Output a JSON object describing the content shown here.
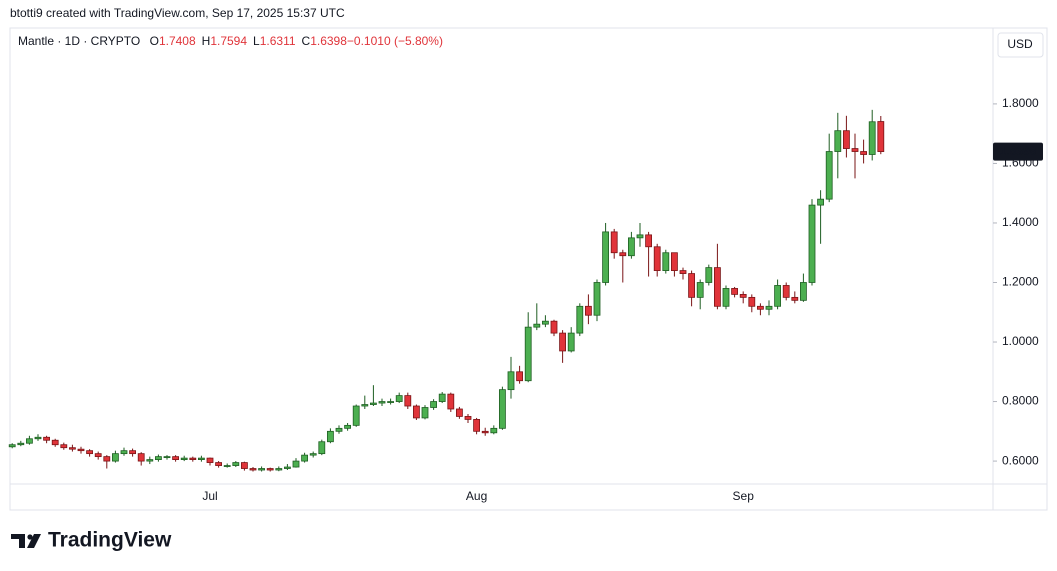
{
  "header": {
    "attribution": "btotti9 created with TradingView.com, Sep 17, 2025 15:37 UTC"
  },
  "chart_data": {
    "type": "candlestick",
    "symbol": "Mantle · 1D · CRYPTO",
    "ohlc_legend": [
      {
        "label": "O",
        "value": "1.7408"
      },
      {
        "label": "H",
        "value": "1.7594"
      },
      {
        "label": "L",
        "value": "1.6311"
      },
      {
        "label": "C",
        "value": "1.6398"
      },
      {
        "label": "",
        "value": "−0.1010 (−5.80%)"
      }
    ],
    "currency": "USD",
    "last_price": 1.6398,
    "up_color": "#4caf50",
    "down_color": "#e0343a",
    "grid": false,
    "ylim": [
      0.523,
      2.055
    ],
    "yticks": [
      {
        "value": 0.6,
        "label": "0.6000"
      },
      {
        "value": 0.8,
        "label": "0.8000"
      },
      {
        "value": 1.0,
        "label": "1.0000"
      },
      {
        "value": 1.2,
        "label": "1.2000"
      },
      {
        "value": 1.4,
        "label": "1.4000"
      },
      {
        "value": 1.6,
        "label": "1.6000"
      },
      {
        "value": 1.8,
        "label": "1.8000"
      }
    ],
    "categories": [
      null,
      null,
      null,
      null,
      null,
      null,
      null,
      null,
      null,
      null,
      null,
      null,
      null,
      null,
      null,
      null,
      null,
      null,
      null,
      null,
      null,
      null,
      null,
      "Jul",
      null,
      null,
      null,
      null,
      null,
      null,
      null,
      null,
      null,
      null,
      null,
      null,
      null,
      null,
      null,
      null,
      null,
      null,
      null,
      null,
      null,
      null,
      null,
      null,
      null,
      null,
      null,
      null,
      null,
      null,
      "Aug",
      null,
      null,
      null,
      null,
      null,
      null,
      null,
      null,
      null,
      null,
      null,
      null,
      null,
      null,
      null,
      null,
      null,
      null,
      null,
      null,
      null,
      null,
      null,
      null,
      null,
      null,
      null,
      null,
      null,
      null,
      "Sep",
      null,
      null,
      null,
      null,
      null,
      null,
      null,
      null,
      null,
      null,
      null,
      null,
      null,
      null,
      null,
      null
    ],
    "open": [
      0.648,
      0.655,
      0.66,
      0.675,
      0.68,
      0.67,
      0.655,
      0.645,
      0.64,
      0.635,
      0.625,
      0.615,
      0.6,
      0.625,
      0.635,
      0.625,
      0.6,
      0.605,
      0.615,
      0.615,
      0.605,
      0.61,
      0.605,
      0.61,
      0.595,
      0.585,
      0.585,
      0.595,
      0.575,
      0.57,
      0.575,
      0.57,
      0.575,
      0.58,
      0.6,
      0.62,
      0.625,
      0.665,
      0.7,
      0.71,
      0.72,
      0.785,
      0.79,
      0.795,
      0.8,
      0.8,
      0.82,
      0.785,
      0.745,
      0.78,
      0.8,
      0.825,
      0.775,
      0.75,
      0.74,
      0.7,
      0.695,
      0.71,
      0.84,
      0.9,
      0.87,
      1.05,
      1.06,
      1.07,
      1.03,
      0.97,
      1.03,
      1.12,
      1.09,
      1.2,
      1.37,
      1.3,
      1.29,
      1.35,
      1.36,
      1.32,
      1.24,
      1.3,
      1.24,
      1.23,
      1.15,
      1.2,
      1.25,
      1.12,
      1.18,
      1.16,
      1.15,
      1.12,
      1.11,
      1.12,
      1.19,
      1.15,
      1.14,
      1.2,
      1.46,
      1.48,
      1.64,
      1.71,
      1.65,
      1.64,
      1.63,
      1.7408
    ],
    "high": [
      0.66,
      0.668,
      0.685,
      0.69,
      0.685,
      0.675,
      0.662,
      0.655,
      0.648,
      0.64,
      0.632,
      0.62,
      0.635,
      0.645,
      0.642,
      0.63,
      0.615,
      0.622,
      0.62,
      0.62,
      0.618,
      0.615,
      0.618,
      0.612,
      0.6,
      0.592,
      0.6,
      0.598,
      0.58,
      0.582,
      0.578,
      0.582,
      0.59,
      0.61,
      0.628,
      0.632,
      0.672,
      0.71,
      0.72,
      0.728,
      0.79,
      0.82,
      0.855,
      0.81,
      0.81,
      0.83,
      0.83,
      0.79,
      0.788,
      0.808,
      0.832,
      0.83,
      0.782,
      0.758,
      0.745,
      0.712,
      0.72,
      0.85,
      0.95,
      0.92,
      1.1,
      1.13,
      1.09,
      1.075,
      1.04,
      1.05,
      1.13,
      1.16,
      1.21,
      1.4,
      1.38,
      1.31,
      1.37,
      1.4,
      1.37,
      1.33,
      1.31,
      1.3,
      1.25,
      1.24,
      1.21,
      1.26,
      1.33,
      1.19,
      1.185,
      1.17,
      1.16,
      1.13,
      1.14,
      1.21,
      1.2,
      1.17,
      1.23,
      1.48,
      1.51,
      1.7,
      1.77,
      1.76,
      1.7,
      1.68,
      1.78,
      1.7594
    ],
    "low": [
      0.643,
      0.65,
      0.655,
      0.668,
      0.66,
      0.648,
      0.638,
      0.632,
      0.625,
      0.615,
      0.605,
      0.575,
      0.595,
      0.618,
      0.615,
      0.585,
      0.59,
      0.598,
      0.605,
      0.598,
      0.6,
      0.598,
      0.598,
      0.585,
      0.578,
      0.578,
      0.58,
      0.568,
      0.565,
      0.565,
      0.565,
      0.566,
      0.57,
      0.578,
      0.595,
      0.612,
      0.62,
      0.66,
      0.692,
      0.702,
      0.715,
      0.775,
      0.785,
      0.785,
      0.79,
      0.795,
      0.775,
      0.738,
      0.74,
      0.772,
      0.795,
      0.765,
      0.742,
      0.728,
      0.69,
      0.685,
      0.69,
      0.705,
      0.81,
      0.86,
      0.865,
      1.04,
      1.05,
      1.02,
      0.93,
      0.965,
      1.02,
      1.06,
      1.07,
      1.19,
      1.28,
      1.2,
      1.28,
      1.32,
      1.22,
      1.22,
      1.23,
      1.22,
      1.21,
      1.12,
      1.11,
      1.19,
      1.11,
      1.11,
      1.15,
      1.13,
      1.1,
      1.09,
      1.09,
      1.11,
      1.14,
      1.13,
      1.135,
      1.19,
      1.33,
      1.47,
      1.55,
      1.62,
      1.55,
      1.6,
      1.61,
      1.6311
    ],
    "close": [
      0.655,
      0.66,
      0.675,
      0.68,
      0.67,
      0.655,
      0.645,
      0.64,
      0.635,
      0.625,
      0.615,
      0.6,
      0.625,
      0.635,
      0.625,
      0.6,
      0.605,
      0.615,
      0.615,
      0.605,
      0.61,
      0.605,
      0.61,
      0.595,
      0.585,
      0.585,
      0.595,
      0.575,
      0.57,
      0.575,
      0.57,
      0.575,
      0.58,
      0.6,
      0.62,
      0.625,
      0.665,
      0.7,
      0.71,
      0.72,
      0.785,
      0.79,
      0.795,
      0.8,
      0.8,
      0.82,
      0.785,
      0.745,
      0.78,
      0.8,
      0.825,
      0.775,
      0.75,
      0.74,
      0.7,
      0.695,
      0.71,
      0.84,
      0.9,
      0.87,
      1.05,
      1.06,
      1.07,
      1.03,
      0.97,
      1.03,
      1.12,
      1.09,
      1.2,
      1.37,
      1.3,
      1.29,
      1.35,
      1.36,
      1.32,
      1.24,
      1.3,
      1.24,
      1.23,
      1.15,
      1.2,
      1.25,
      1.12,
      1.18,
      1.16,
      1.15,
      1.12,
      1.11,
      1.12,
      1.19,
      1.15,
      1.14,
      1.2,
      1.46,
      1.48,
      1.64,
      1.71,
      1.65,
      1.64,
      1.63,
      1.74,
      1.6398
    ]
  },
  "footer": {
    "brand": "TradingView"
  }
}
